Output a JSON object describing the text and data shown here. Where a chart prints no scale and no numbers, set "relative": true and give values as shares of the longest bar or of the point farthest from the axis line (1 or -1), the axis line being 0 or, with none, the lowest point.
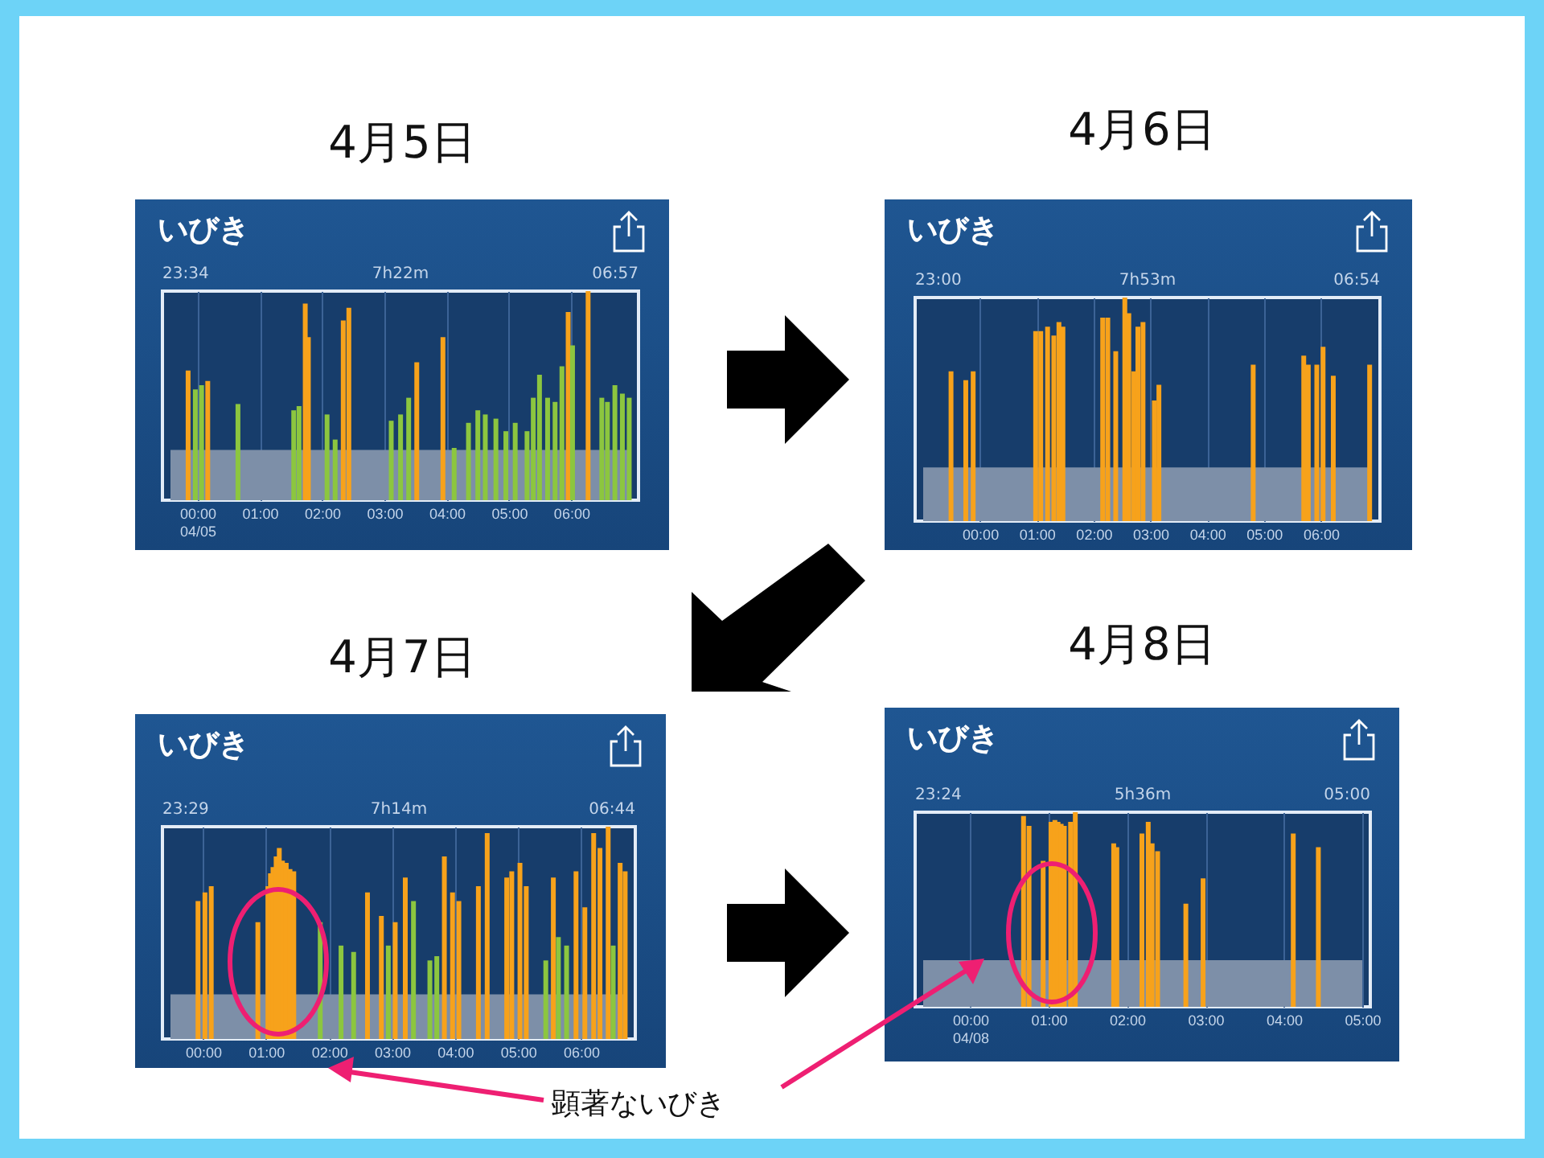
{
  "chart_data": [
    {
      "type": "bar",
      "title": "4月5日",
      "subtitle": "いびき",
      "annotations": [
        "23:34",
        "7h22m",
        "06:57"
      ],
      "relative": true,
      "grid": "x",
      "xlim": [
        -0.433,
        6.95
      ],
      "xticks": [
        {
          "value": 0,
          "label": "00:00\n04/05"
        },
        {
          "value": 1,
          "label": "01:00"
        },
        {
          "value": 2,
          "label": "02:00"
        },
        {
          "value": 3,
          "label": "03:00"
        },
        {
          "value": 4,
          "label": "04:00"
        },
        {
          "value": 5,
          "label": "05:00"
        },
        {
          "value": 6,
          "label": "06:00"
        }
      ],
      "bands": [
        {
          "axis": "y",
          "from": 0,
          "to": 0.24,
          "color": "#7d8fa8"
        }
      ],
      "series": [
        {
          "color": "#f7a21b",
          "x": [
            -0.15,
            0.165,
            1.73,
            1.78,
            2.34,
            2.43,
            3.52,
            3.94,
            5.95,
            6.27
          ],
          "values": [
            0.62,
            0.57,
            0.94,
            0.78,
            0.86,
            0.92,
            0.66,
            0.78,
            0.9,
            1.0
          ]
        },
        {
          "color": "#8cc63f",
          "x": [
            -0.034,
            0.066,
            0.65,
            1.545,
            1.63,
            2.08,
            2.21,
            3.11,
            3.26,
            3.39,
            4.12,
            4.35,
            4.5,
            4.62,
            4.79,
            4.95,
            5.1,
            5.29,
            5.39,
            5.49,
            5.62,
            5.74,
            5.85,
            6.02,
            6.49,
            6.58,
            6.7,
            6.82,
            6.93
          ],
          "values": [
            0.53,
            0.55,
            0.46,
            0.43,
            0.45,
            0.41,
            0.29,
            0.38,
            0.41,
            0.49,
            0.25,
            0.37,
            0.43,
            0.41,
            0.39,
            0.33,
            0.37,
            0.33,
            0.49,
            0.6,
            0.49,
            0.47,
            0.64,
            0.74,
            0.49,
            0.47,
            0.55,
            0.51,
            0.49
          ]
        }
      ]
    },
    {
      "type": "bar",
      "title": "4月6日",
      "subtitle": "いびき",
      "annotations": [
        "23:00",
        "7h53m",
        "06:54"
      ],
      "relative": true,
      "grid": "x",
      "xlim": [
        -1,
        6.9
      ],
      "xticks": [
        {
          "value": 0,
          "label": "00:00"
        },
        {
          "value": 1,
          "label": "01:00"
        },
        {
          "value": 2,
          "label": "02:00"
        },
        {
          "value": 3,
          "label": "03:00"
        },
        {
          "value": 4,
          "label": "04:00"
        },
        {
          "value": 5,
          "label": "05:00"
        },
        {
          "value": 6,
          "label": "06:00"
        }
      ],
      "bands": [
        {
          "axis": "y",
          "from": 0,
          "to": 0.24,
          "color": "#7d8fa8"
        }
      ],
      "series": [
        {
          "color": "#f7a21b",
          "x": [
            -0.51,
            -0.25,
            -0.12,
            0.98,
            1.07,
            1.19,
            1.3,
            1.39,
            1.46,
            2.16,
            2.25,
            2.39,
            2.55,
            2.62,
            2.71,
            2.78,
            2.87,
            3.07,
            3.15,
            4.81,
            5.7,
            5.78,
            5.93,
            6.04,
            6.22,
            6.86
          ],
          "values": [
            0.67,
            0.63,
            0.67,
            0.85,
            0.85,
            0.87,
            0.83,
            0.89,
            0.87,
            0.91,
            0.91,
            0.76,
            1.0,
            0.93,
            0.67,
            0.87,
            0.89,
            0.54,
            0.61,
            0.7,
            0.74,
            0.7,
            0.7,
            0.78,
            0.65,
            0.7
          ]
        }
      ]
    },
    {
      "type": "bar",
      "title": "4月7日",
      "subtitle": "いびき",
      "annotations": [
        "23:29",
        "7h14m",
        "06:44",
        "顕著ないびき"
      ],
      "relative": true,
      "grid": "x",
      "xlim": [
        -0.517,
        6.733
      ],
      "xticks": [
        {
          "value": 0,
          "label": "00:00"
        },
        {
          "value": 1,
          "label": "01:00"
        },
        {
          "value": 2,
          "label": "02:00"
        },
        {
          "value": 3,
          "label": "03:00"
        },
        {
          "value": 4,
          "label": "04:00"
        },
        {
          "value": 5,
          "label": "05:00"
        },
        {
          "value": 6,
          "label": "06:00"
        }
      ],
      "bands": [
        {
          "axis": "y",
          "from": 0,
          "to": 0.21,
          "color": "#7d8fa8"
        }
      ],
      "series": [
        {
          "color": "#f7a21b",
          "x": [
            -0.08,
            0.03,
            0.13,
            0.87,
            1.03,
            1.07,
            1.11,
            1.16,
            1.21,
            1.26,
            1.32,
            1.38,
            1.44,
            2.61,
            2.83,
            3.05,
            3.21,
            3.83,
            3.96,
            4.06,
            4.37,
            4.51,
            4.82,
            4.9,
            5.03,
            5.13,
            5.56,
            5.92,
            6.06,
            6.2,
            6.3,
            6.43,
            6.62,
            6.7
          ],
          "values": [
            0.65,
            0.69,
            0.72,
            0.55,
            0.72,
            0.78,
            0.81,
            0.86,
            0.9,
            0.84,
            0.83,
            0.8,
            0.79,
            0.69,
            0.58,
            0.55,
            0.76,
            0.86,
            0.69,
            0.65,
            0.72,
            0.97,
            0.76,
            0.79,
            0.83,
            0.72,
            0.76,
            0.79,
            0.62,
            0.97,
            0.9,
            1.0,
            0.83,
            0.79
          ]
        },
        {
          "color": "#8cc63f",
          "x": [
            1.86,
            2.19,
            2.39,
            2.94,
            3.34,
            3.6,
            3.71,
            5.44,
            5.64,
            5.77,
            6.51
          ],
          "values": [
            0.55,
            0.44,
            0.41,
            0.44,
            0.65,
            0.37,
            0.39,
            0.37,
            0.48,
            0.44,
            0.44
          ]
        }
      ]
    },
    {
      "type": "bar",
      "title": "4月8日",
      "subtitle": "いびき",
      "annotations": [
        "23:24",
        "5h36m",
        "05:00"
      ],
      "relative": true,
      "grid": "x",
      "xlim": [
        -0.6,
        5
      ],
      "xticks": [
        {
          "value": 0,
          "label": "00:00\n04/08"
        },
        {
          "value": 1,
          "label": "01:00"
        },
        {
          "value": 2,
          "label": "02:00"
        },
        {
          "value": 3,
          "label": "03:00"
        },
        {
          "value": 4,
          "label": "04:00"
        },
        {
          "value": 5,
          "label": "05:00"
        }
      ],
      "bands": [
        {
          "axis": "y",
          "from": 0,
          "to": 0.24,
          "color": "#7d8fa8"
        }
      ],
      "series": [
        {
          "color": "#f7a21b",
          "x": [
            0.68,
            0.75,
            0.93,
            1.03,
            1.08,
            1.12,
            1.16,
            1.2,
            1.28,
            1.34,
            1.83,
            1.87,
            2.19,
            2.27,
            2.32,
            2.39,
            2.75,
            2.97,
            4.12,
            4.44
          ],
          "values": [
            0.98,
            0.93,
            0.75,
            0.95,
            0.96,
            0.95,
            0.94,
            0.93,
            0.95,
            1.0,
            0.84,
            0.82,
            0.89,
            0.95,
            0.84,
            0.8,
            0.53,
            0.66,
            0.89,
            0.82
          ]
        }
      ]
    }
  ]
}
